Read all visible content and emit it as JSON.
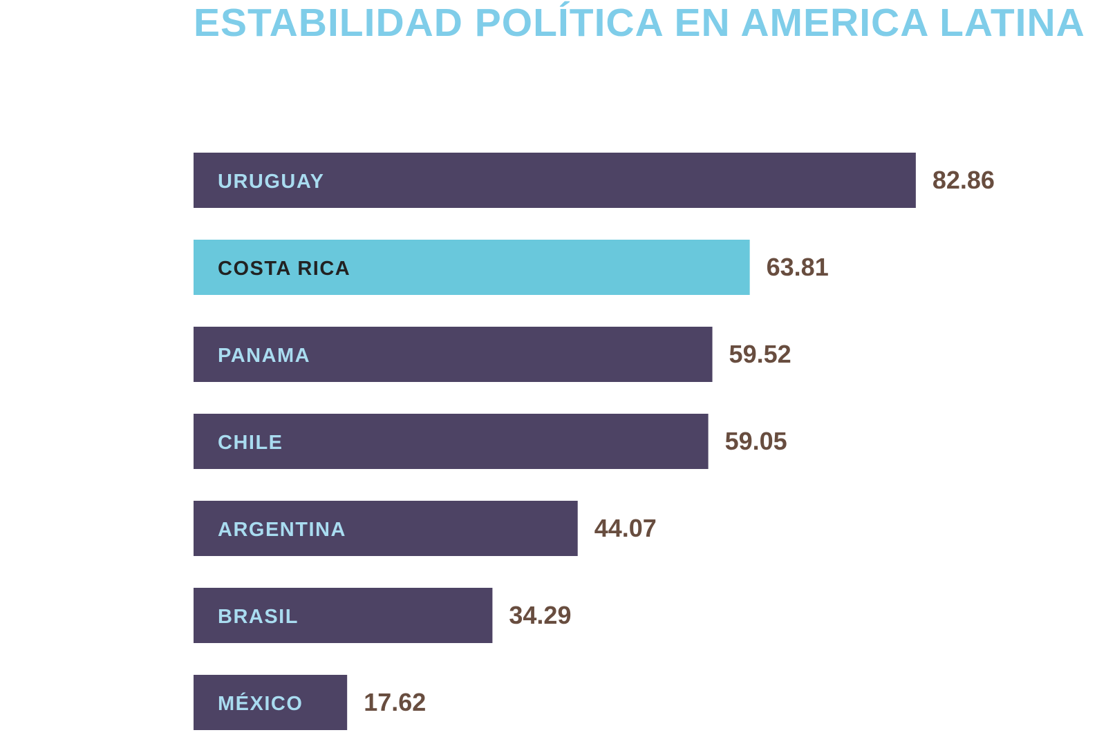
{
  "chart_data": {
    "type": "bar",
    "orientation": "horizontal",
    "title": "ESTABILIDAD POLÍTICA EN AMERICA LATINA",
    "categories": [
      "URUGUAY",
      "COSTA RICA",
      "PANAMA",
      "CHILE",
      "ARGENTINA",
      "BRASIL",
      "MÉXICO"
    ],
    "values": [
      82.86,
      63.81,
      59.52,
      59.05,
      44.07,
      34.29,
      17.62
    ],
    "value_labels": [
      "82.86",
      "63.81",
      "59.52",
      "59.05",
      "44.07",
      "34.29",
      "17.62"
    ],
    "highlight": "COSTA RICA",
    "xlim": [
      0,
      100
    ],
    "grid": false,
    "legend": "none"
  },
  "colors": {
    "title": "#7fcde9",
    "bar": "#4d4364",
    "bar_highlight": "#69c8dc",
    "label": "#a9dcf0",
    "label_highlight": "#222222",
    "value": "#684d3f"
  }
}
